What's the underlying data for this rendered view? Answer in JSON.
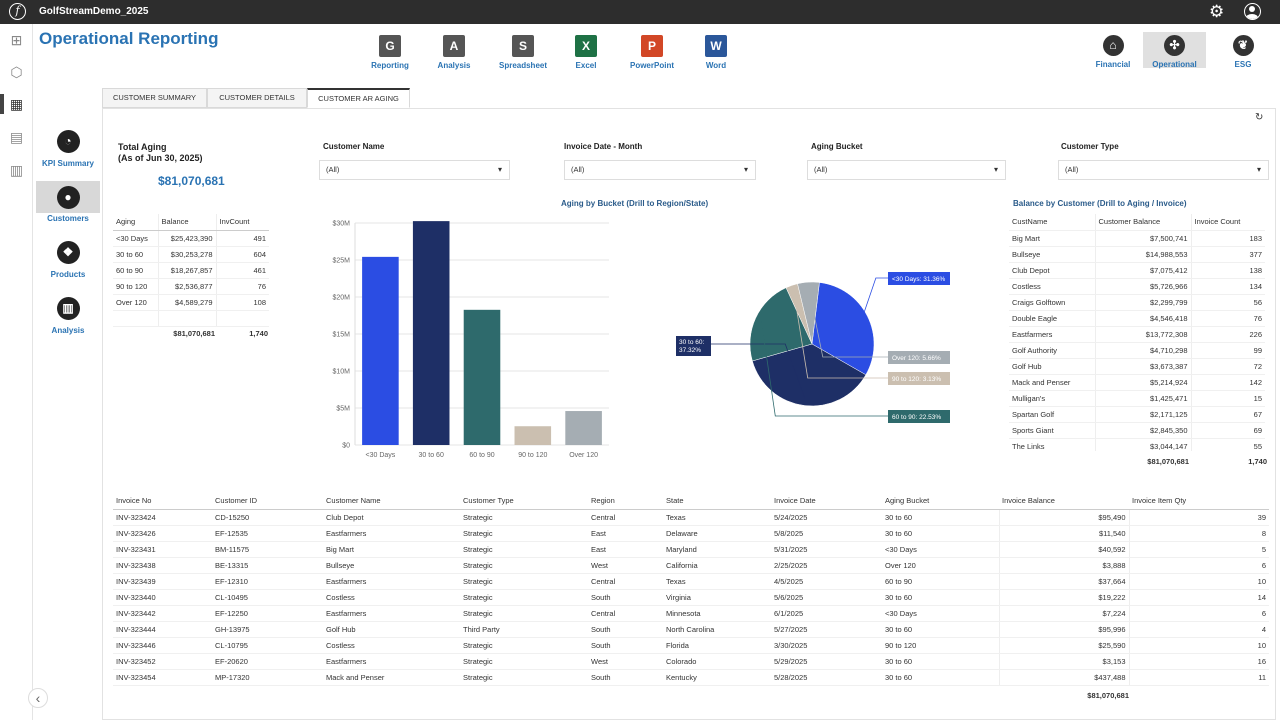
{
  "app": {
    "title": "GolfStreamDemo_2025"
  },
  "page": {
    "title": "Operational Reporting"
  },
  "tools": [
    {
      "label": "Reporting",
      "icon": "G",
      "color": "#555"
    },
    {
      "label": "Analysis",
      "icon": "A",
      "color": "#555"
    },
    {
      "label": "Spreadsheet",
      "icon": "S",
      "color": "#555"
    },
    {
      "label": "Excel",
      "icon": "X",
      "color": "#1e7145"
    },
    {
      "label": "PowerPoint",
      "icon": "P",
      "color": "#d24726"
    },
    {
      "label": "Word",
      "icon": "W",
      "color": "#2b579a"
    }
  ],
  "rightnav": [
    {
      "label": "Financial"
    },
    {
      "label": "Operational"
    },
    {
      "label": "ESG"
    }
  ],
  "leftnav": [
    {
      "label": "KPI Summary"
    },
    {
      "label": "Customers"
    },
    {
      "label": "Products"
    },
    {
      "label": "Analysis"
    }
  ],
  "tabs": [
    {
      "label": "CUSTOMER SUMMARY"
    },
    {
      "label": "CUSTOMER DETAILS"
    },
    {
      "label": "CUSTOMER AR AGING"
    }
  ],
  "kpi": {
    "title_line1": "Total Aging",
    "title_line2": "(As of Jun 30, 2025)",
    "value": "$81,070,681"
  },
  "filters": [
    {
      "label": "Customer Name",
      "value": "(All)"
    },
    {
      "label": "Invoice Date - Month",
      "value": "(All)"
    },
    {
      "label": "Aging Bucket",
      "value": "(All)"
    },
    {
      "label": "Customer Type",
      "value": "(All)"
    }
  ],
  "aging_table": {
    "headers": [
      "Aging",
      "Balance",
      "InvCount"
    ],
    "rows": [
      [
        "<30 Days",
        "$25,423,390",
        "491"
      ],
      [
        "30 to 60",
        "$30,253,278",
        "604"
      ],
      [
        "60 to 90",
        "$18,267,857",
        "461"
      ],
      [
        "90 to 120",
        "$2,536,877",
        "76"
      ],
      [
        "Over 120",
        "$4,589,279",
        "108"
      ]
    ],
    "total_balance": "$81,070,681",
    "total_count": "1,740"
  },
  "bar_title": "Aging by Bucket (Drill to Region/State)",
  "pie_labels": [
    "<30 Days: 31.36%",
    "30 to 60: 37.32%",
    "60 to 90: 22.53%",
    "90 to 120: 3.13%",
    "Over 120: 5.66%"
  ],
  "chart_data": [
    {
      "type": "bar",
      "title": "Aging by Bucket (Drill to Region/State)",
      "categories": [
        "<30 Days",
        "30 to 60",
        "60 to 90",
        "90 to 120",
        "Over 120"
      ],
      "values": [
        25423390,
        30253278,
        18267857,
        2536877,
        4589279
      ],
      "colors": [
        "#2b4de3",
        "#1e2f66",
        "#2e6a6c",
        "#cbbfb0",
        "#a5adb3"
      ],
      "yticks": [
        "$0",
        "$5M",
        "$10M",
        "$15M",
        "$20M",
        "$25M",
        "$30M"
      ],
      "ylim": [
        0,
        30000000
      ]
    },
    {
      "type": "pie",
      "labels": [
        "<30 Days",
        "30 to 60",
        "60 to 90",
        "90 to 120",
        "Over 120"
      ],
      "values": [
        31.36,
        37.32,
        22.53,
        3.13,
        5.66
      ],
      "colors": [
        "#2b4de3",
        "#1e2f66",
        "#2e6a6c",
        "#cbbfb0",
        "#a5adb3"
      ]
    }
  ],
  "balance_table": {
    "title": "Balance by Customer (Drill to Aging / Invoice)",
    "headers": [
      "CustName",
      "Customer Balance",
      "Invoice Count"
    ],
    "rows": [
      [
        "Big Mart",
        "$7,500,741",
        "183"
      ],
      [
        "Bullseye",
        "$14,988,553",
        "377"
      ],
      [
        "Club Depot",
        "$7,075,412",
        "138"
      ],
      [
        "Costless",
        "$5,726,966",
        "134"
      ],
      [
        "Craigs Golftown",
        "$2,299,799",
        "56"
      ],
      [
        "Double Eagle",
        "$4,546,418",
        "76"
      ],
      [
        "Eastfarmers",
        "$13,772,308",
        "226"
      ],
      [
        "Golf Authority",
        "$4,710,298",
        "99"
      ],
      [
        "Golf Hub",
        "$3,673,387",
        "72"
      ],
      [
        "Mack and Penser",
        "$5,214,924",
        "142"
      ],
      [
        "Mulligan's",
        "$1,425,471",
        "15"
      ],
      [
        "Spartan Golf",
        "$2,171,125",
        "67"
      ],
      [
        "Sports Giant",
        "$2,845,350",
        "69"
      ],
      [
        "The Links",
        "$3,044,147",
        "55"
      ]
    ],
    "total_balance": "$81,070,681",
    "total_count": "1,740"
  },
  "invoice_table": {
    "headers": [
      "Invoice No",
      "Customer ID",
      "Customer Name",
      "Customer Type",
      "Region",
      "State",
      "Invoice Date",
      "Aging Bucket",
      "Invoice Balance",
      "Invoice Item Qty"
    ],
    "rows": [
      [
        "INV-323424",
        "CD-15250",
        "Club Depot",
        "Strategic",
        "Central",
        "Texas",
        "5/24/2025",
        "30 to 60",
        "$95,490",
        "39"
      ],
      [
        "INV-323426",
        "EF-12535",
        "Eastfarmers",
        "Strategic",
        "East",
        "Delaware",
        "5/8/2025",
        "30 to 60",
        "$11,540",
        "8"
      ],
      [
        "INV-323431",
        "BM-11575",
        "Big Mart",
        "Strategic",
        "East",
        "Maryland",
        "5/31/2025",
        "<30 Days",
        "$40,592",
        "5"
      ],
      [
        "INV-323438",
        "BE-13315",
        "Bullseye",
        "Strategic",
        "West",
        "California",
        "2/25/2025",
        "Over 120",
        "$3,888",
        "6"
      ],
      [
        "INV-323439",
        "EF-12310",
        "Eastfarmers",
        "Strategic",
        "Central",
        "Texas",
        "4/5/2025",
        "60 to 90",
        "$37,664",
        "10"
      ],
      [
        "INV-323440",
        "CL-10495",
        "Costless",
        "Strategic",
        "South",
        "Virginia",
        "5/6/2025",
        "30 to 60",
        "$19,222",
        "14"
      ],
      [
        "INV-323442",
        "EF-12250",
        "Eastfarmers",
        "Strategic",
        "Central",
        "Minnesota",
        "6/1/2025",
        "<30 Days",
        "$7,224",
        "6"
      ],
      [
        "INV-323444",
        "GH-13975",
        "Golf Hub",
        "Third Party",
        "South",
        "North Carolina",
        "5/27/2025",
        "30 to 60",
        "$95,996",
        "4"
      ],
      [
        "INV-323446",
        "CL-10795",
        "Costless",
        "Strategic",
        "South",
        "Florida",
        "3/30/2025",
        "90 to 120",
        "$25,590",
        "10"
      ],
      [
        "INV-323452",
        "EF-20620",
        "Eastfarmers",
        "Strategic",
        "West",
        "Colorado",
        "5/29/2025",
        "30 to 60",
        "$3,153",
        "16"
      ],
      [
        "INV-323454",
        "MP-17320",
        "Mack and Penser",
        "Strategic",
        "South",
        "Kentucky",
        "5/28/2025",
        "30 to 60",
        "$437,488",
        "11"
      ]
    ],
    "total_balance": "$81,070,681"
  }
}
